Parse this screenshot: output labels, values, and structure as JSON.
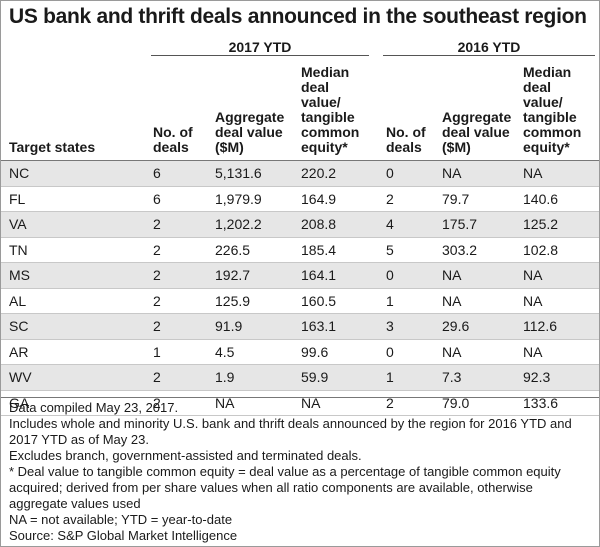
{
  "title": "US bank and thrift deals announced in the southeast region",
  "groups": {
    "ytd2017": "2017 YTD",
    "ytd2016": "2016 YTD"
  },
  "columns": {
    "state": "Target states",
    "deals_2017": [
      "No. of",
      "deals"
    ],
    "agg_2017": [
      "Aggregate",
      "deal value",
      "($M)"
    ],
    "median_2017": [
      "Median",
      "deal",
      "value/",
      "tangible",
      "common",
      "equity*"
    ],
    "deals_2016": [
      "No. of",
      "deals"
    ],
    "agg_2016": [
      "Aggregate",
      "deal value",
      "($M)"
    ],
    "median_2016": [
      "Median",
      "deal",
      "value/",
      "tangible",
      "common",
      "equity*"
    ]
  },
  "rows": [
    {
      "state": "NC",
      "d17": "6",
      "a17": "5,131.6",
      "m17": "220.2",
      "d16": "0",
      "a16": "NA",
      "m16": "NA"
    },
    {
      "state": "FL",
      "d17": "6",
      "a17": "1,979.9",
      "m17": "164.9",
      "d16": "2",
      "a16": "79.7",
      "m16": "140.6"
    },
    {
      "state": "VA",
      "d17": "2",
      "a17": "1,202.2",
      "m17": "208.8",
      "d16": "4",
      "a16": "175.7",
      "m16": "125.2"
    },
    {
      "state": "TN",
      "d17": "2",
      "a17": "226.5",
      "m17": "185.4",
      "d16": "5",
      "a16": "303.2",
      "m16": "102.8"
    },
    {
      "state": "MS",
      "d17": "2",
      "a17": "192.7",
      "m17": "164.1",
      "d16": "0",
      "a16": "NA",
      "m16": "NA"
    },
    {
      "state": "AL",
      "d17": "2",
      "a17": "125.9",
      "m17": "160.5",
      "d16": "1",
      "a16": "NA",
      "m16": "NA"
    },
    {
      "state": "SC",
      "d17": "2",
      "a17": "91.9",
      "m17": "163.1",
      "d16": "3",
      "a16": "29.6",
      "m16": "112.6"
    },
    {
      "state": "AR",
      "d17": "1",
      "a17": "4.5",
      "m17": "99.6",
      "d16": "0",
      "a16": "NA",
      "m16": "NA"
    },
    {
      "state": "WV",
      "d17": "2",
      "a17": "1.9",
      "m17": "59.9",
      "d16": "1",
      "a16": "7.3",
      "m16": "92.3"
    },
    {
      "state": "GA",
      "d17": "2",
      "a17": "NA",
      "m17": "NA",
      "d16": "2",
      "a16": "79.0",
      "m16": "133.6"
    }
  ],
  "notes": [
    "Data compiled May 23, 2017.",
    "Includes whole and minority U.S. bank and thrift deals announced by the region for 2016 YTD and 2017  YTD as of May 23.",
    "Excludes branch, government-assisted and terminated deals.",
    "* Deal value to tangible common equity = deal value as a percentage of tangible common equity acquired; derived from per share values when all ratio components are available, otherwise aggregate values used",
    "NA = not available; YTD = year-to-date",
    "Source: S&P Global Market Intelligence"
  ]
}
